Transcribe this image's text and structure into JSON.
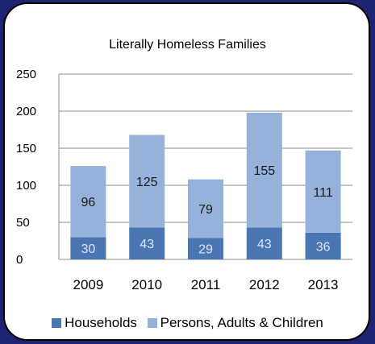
{
  "chart_data": {
    "type": "bar",
    "stacked": true,
    "title": "Literally Homeless Families",
    "categories": [
      "2009",
      "2010",
      "2011",
      "2012",
      "2013"
    ],
    "series": [
      {
        "name": "Households",
        "values": [
          30,
          43,
          29,
          43,
          36
        ],
        "color": "#4a76b1"
      },
      {
        "name": "Persons, Adults & Children",
        "values": [
          96,
          125,
          79,
          155,
          111
        ],
        "color": "#96b2da"
      }
    ],
    "ylim": [
      0,
      250
    ],
    "yticks": [
      0,
      50,
      100,
      150,
      200,
      250
    ],
    "grid": true,
    "legend_position": "bottom"
  }
}
